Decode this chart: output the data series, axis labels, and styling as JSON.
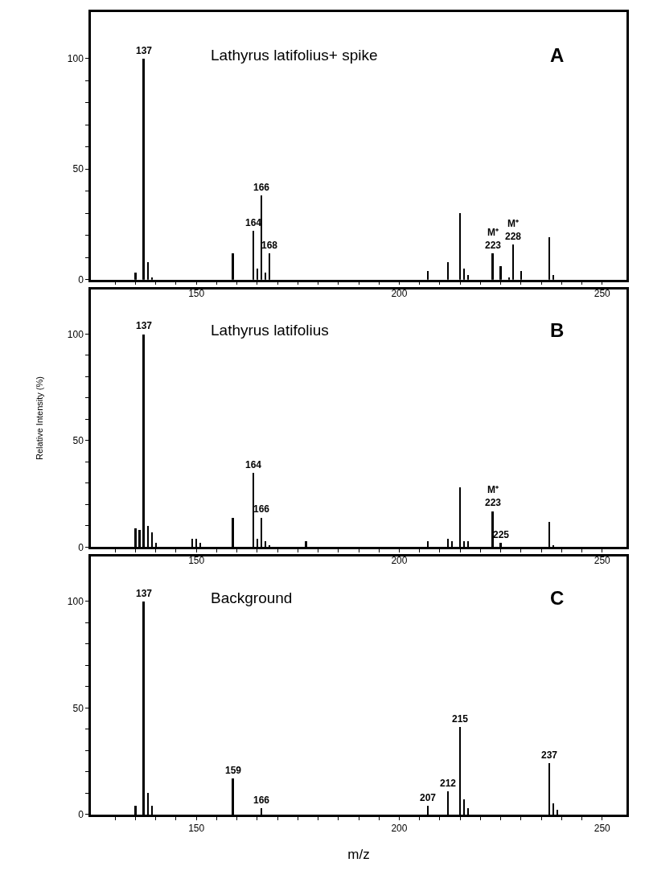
{
  "chart_data": [
    {
      "type": "bar",
      "title": "Lathyrus latifolius+ spike",
      "subtitle": "A",
      "color": "#000000",
      "x": [
        135,
        137,
        138,
        139,
        159,
        164,
        165,
        166,
        167,
        168,
        207,
        212,
        215,
        216,
        217,
        223,
        225,
        227,
        228,
        230,
        237,
        238
      ],
      "values": [
        3,
        100,
        8,
        1,
        12,
        22,
        5,
        38,
        3,
        12,
        4,
        8,
        30,
        5,
        2,
        12,
        6,
        1,
        16,
        4,
        19,
        2
      ],
      "annotations": [
        {
          "text": "137",
          "x": 137,
          "y": 100
        },
        {
          "text": "164",
          "x": 164,
          "y": 22
        },
        {
          "text": "166",
          "x": 166,
          "y": 38
        },
        {
          "text": "168",
          "x": 168,
          "y": 12
        },
        {
          "text": "M⁺\n223",
          "x": 223,
          "y": 12
        },
        {
          "text": "M⁺\n228",
          "x": 228,
          "y": 16
        }
      ],
      "xlim": [
        124,
        256
      ],
      "ylim": [
        0,
        121
      ],
      "xticks": [
        {
          "value": 130,
          "label": null
        },
        {
          "value": 135,
          "label": null
        },
        {
          "value": 140,
          "label": null
        },
        {
          "value": 145,
          "label": null
        },
        150,
        {
          "value": 155,
          "label": null
        },
        {
          "value": 160,
          "label": null
        },
        {
          "value": 165,
          "label": null
        },
        {
          "value": 170,
          "label": null
        },
        {
          "value": 175,
          "label": null
        },
        {
          "value": 180,
          "label": null
        },
        {
          "value": 185,
          "label": null
        },
        {
          "value": 190,
          "label": null
        },
        {
          "value": 195,
          "label": null
        },
        200,
        {
          "value": 205,
          "label": null
        },
        {
          "value": 210,
          "label": null
        },
        {
          "value": 215,
          "label": null
        },
        {
          "value": 220,
          "label": null
        },
        {
          "value": 225,
          "label": null
        },
        {
          "value": 230,
          "label": null
        },
        {
          "value": 235,
          "label": null
        },
        {
          "value": 240,
          "label": null
        },
        {
          "value": 245,
          "label": null
        },
        250
      ],
      "yticks": [
        0,
        {
          "value": 10,
          "label": null
        },
        {
          "value": 20,
          "label": null
        },
        {
          "value": 30,
          "label": null
        },
        {
          "value": 40,
          "label": null
        },
        50,
        {
          "value": 60,
          "label": null
        },
        {
          "value": 70,
          "label": null
        },
        {
          "value": 80,
          "label": null
        },
        {
          "value": 90,
          "label": null
        },
        100
      ],
      "grid": false
    },
    {
      "type": "bar",
      "title": "Lathyrus latifolius",
      "subtitle": "B",
      "color": "#000000",
      "ylabel": "Relative Intensity (%)",
      "x": [
        135,
        136,
        137,
        138,
        139,
        140,
        149,
        150,
        151,
        159,
        164,
        165,
        166,
        167,
        168,
        177,
        207,
        212,
        213,
        215,
        216,
        217,
        223,
        225,
        237,
        238
      ],
      "values": [
        9,
        8,
        100,
        10,
        7,
        2,
        4,
        4,
        2,
        14,
        35,
        4,
        14,
        3,
        1,
        3,
        3,
        4,
        3,
        28,
        3,
        3,
        17,
        2,
        12,
        1
      ],
      "annotations": [
        {
          "text": "137",
          "x": 137,
          "y": 100
        },
        {
          "text": "164",
          "x": 164,
          "y": 35
        },
        {
          "text": "166",
          "x": 166,
          "y": 14
        },
        {
          "text": "M⁺\n223",
          "x": 223,
          "y": 17
        },
        {
          "text": "225",
          "x": 225,
          "y": 2
        }
      ],
      "xlim": [
        124,
        256
      ],
      "ylim": [
        0,
        121
      ],
      "xticks": [
        {
          "value": 130,
          "label": null
        },
        {
          "value": 135,
          "label": null
        },
        {
          "value": 140,
          "label": null
        },
        {
          "value": 145,
          "label": null
        },
        150,
        {
          "value": 155,
          "label": null
        },
        {
          "value": 160,
          "label": null
        },
        {
          "value": 165,
          "label": null
        },
        {
          "value": 170,
          "label": null
        },
        {
          "value": 175,
          "label": null
        },
        {
          "value": 180,
          "label": null
        },
        {
          "value": 185,
          "label": null
        },
        {
          "value": 190,
          "label": null
        },
        {
          "value": 195,
          "label": null
        },
        200,
        {
          "value": 205,
          "label": null
        },
        {
          "value": 210,
          "label": null
        },
        {
          "value": 215,
          "label": null
        },
        {
          "value": 220,
          "label": null
        },
        {
          "value": 225,
          "label": null
        },
        {
          "value": 230,
          "label": null
        },
        {
          "value": 235,
          "label": null
        },
        {
          "value": 240,
          "label": null
        },
        {
          "value": 245,
          "label": null
        },
        250
      ],
      "yticks": [
        0,
        {
          "value": 10,
          "label": null
        },
        {
          "value": 20,
          "label": null
        },
        {
          "value": 30,
          "label": null
        },
        {
          "value": 40,
          "label": null
        },
        50,
        {
          "value": 60,
          "label": null
        },
        {
          "value": 70,
          "label": null
        },
        {
          "value": 80,
          "label": null
        },
        {
          "value": 90,
          "label": null
        },
        100
      ],
      "grid": false
    },
    {
      "type": "bar",
      "title": "Background",
      "subtitle": "C",
      "color": "#000000",
      "xlabel": "m/z",
      "x": [
        135,
        137,
        138,
        139,
        159,
        166,
        207,
        212,
        215,
        216,
        217,
        237,
        238,
        239
      ],
      "values": [
        4,
        100,
        10,
        4,
        17,
        3,
        4,
        11,
        41,
        7,
        3,
        24,
        5,
        2
      ],
      "annotations": [
        {
          "text": "137",
          "x": 137,
          "y": 100
        },
        {
          "text": "159",
          "x": 159,
          "y": 17
        },
        {
          "text": "166",
          "x": 166,
          "y": 3
        },
        {
          "text": "207",
          "x": 207,
          "y": 4
        },
        {
          "text": "212",
          "x": 212,
          "y": 11
        },
        {
          "text": "215",
          "x": 215,
          "y": 41
        },
        {
          "text": "237",
          "x": 237,
          "y": 24
        }
      ],
      "xlim": [
        124,
        256
      ],
      "ylim": [
        0,
        121
      ],
      "xticks": [
        {
          "value": 130,
          "label": null
        },
        {
          "value": 135,
          "label": null
        },
        {
          "value": 140,
          "label": null
        },
        {
          "value": 145,
          "label": null
        },
        150,
        {
          "value": 155,
          "label": null
        },
        {
          "value": 160,
          "label": null
        },
        {
          "value": 165,
          "label": null
        },
        {
          "value": 170,
          "label": null
        },
        {
          "value": 175,
          "label": null
        },
        {
          "value": 180,
          "label": null
        },
        {
          "value": 185,
          "label": null
        },
        {
          "value": 190,
          "label": null
        },
        {
          "value": 195,
          "label": null
        },
        200,
        {
          "value": 205,
          "label": null
        },
        {
          "value": 210,
          "label": null
        },
        {
          "value": 215,
          "label": null
        },
        {
          "value": 220,
          "label": null
        },
        {
          "value": 225,
          "label": null
        },
        {
          "value": 230,
          "label": null
        },
        {
          "value": 235,
          "label": null
        },
        {
          "value": 240,
          "label": null
        },
        {
          "value": 245,
          "label": null
        },
        250
      ],
      "yticks": [
        0,
        {
          "value": 10,
          "label": null
        },
        {
          "value": 20,
          "label": null
        },
        {
          "value": 30,
          "label": null
        },
        {
          "value": 40,
          "label": null
        },
        50,
        {
          "value": 60,
          "label": null
        },
        {
          "value": 70,
          "label": null
        },
        {
          "value": 80,
          "label": null
        },
        {
          "value": 90,
          "label": null
        },
        100
      ],
      "grid": false
    }
  ]
}
